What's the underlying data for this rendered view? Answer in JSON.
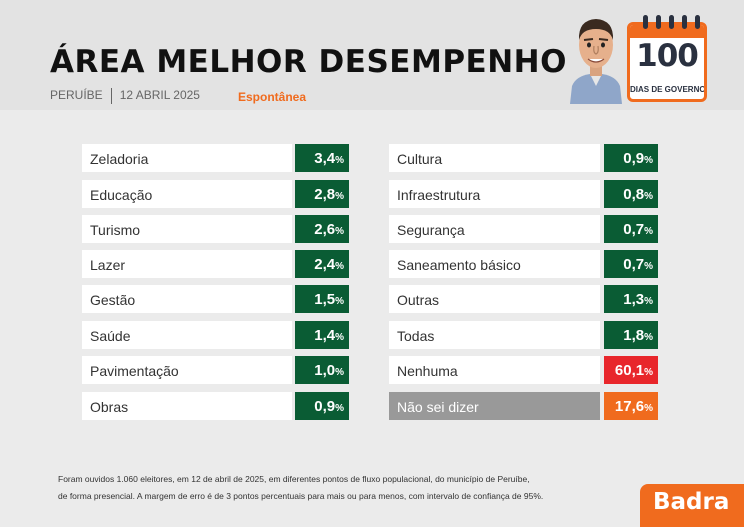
{
  "header": {
    "title": "ÁREA MELHOR DESEMPENHO",
    "city": "PERUÍBE",
    "date": "12 ABRIL 2025",
    "subtitle": "Espontânea"
  },
  "badge": {
    "number": "100",
    "label": "DIAS DE GOVERNO"
  },
  "chart_data": {
    "type": "table",
    "unit": "%",
    "rows": [
      {
        "label": "Zeladoria",
        "display": "3,4",
        "value": 3.4,
        "color": "#0a5c34"
      },
      {
        "label": "Educação",
        "display": "2,8",
        "value": 2.8,
        "color": "#0a5c34"
      },
      {
        "label": "Turismo",
        "display": "2,6",
        "value": 2.6,
        "color": "#0a5c34"
      },
      {
        "label": "Lazer",
        "display": "2,4",
        "value": 2.4,
        "color": "#0a5c34"
      },
      {
        "label": "Gestão",
        "display": "1,5",
        "value": 1.5,
        "color": "#0a5c34"
      },
      {
        "label": "Saúde",
        "display": "1,4",
        "value": 1.4,
        "color": "#0a5c34"
      },
      {
        "label": "Pavimentação",
        "display": "1,0",
        "value": 1.0,
        "color": "#0a5c34"
      },
      {
        "label": "Obras",
        "display": "0,9",
        "value": 0.9,
        "color": "#0a5c34"
      },
      {
        "label": "Cultura",
        "display": "0,9",
        "value": 0.9,
        "color": "#0a5c34"
      },
      {
        "label": "Infraestrutura",
        "display": "0,8",
        "value": 0.8,
        "color": "#0a5c34"
      },
      {
        "label": "Segurança",
        "display": "0,7",
        "value": 0.7,
        "color": "#0a5c34"
      },
      {
        "label": "Saneamento básico",
        "display": "0,7",
        "value": 0.7,
        "color": "#0a5c34"
      },
      {
        "label": "Outras",
        "display": "1,3",
        "value": 1.3,
        "color": "#0a5c34"
      },
      {
        "label": "Todas",
        "display": "1,8",
        "value": 1.8,
        "color": "#0a5c34"
      },
      {
        "label": "Nenhuma",
        "display": "60,1",
        "value": 60.1,
        "color": "#e8262b"
      },
      {
        "label": "Não sei dizer",
        "display": "17,6",
        "value": 17.6,
        "color": "#f06b1e",
        "label_bg": "#999999"
      }
    ]
  },
  "footnote": {
    "line1": "Foram ouvidos 1.060 eleitores, em 12 de abril de 2025, em diferentes pontos de fluxo populacional, do município de Peruíbe,",
    "line2": "de forma presencial. A margem de erro é de 3 pontos percentuais para mais ou para menos, com intervalo de confiança de 95%."
  },
  "brand": "Badra"
}
